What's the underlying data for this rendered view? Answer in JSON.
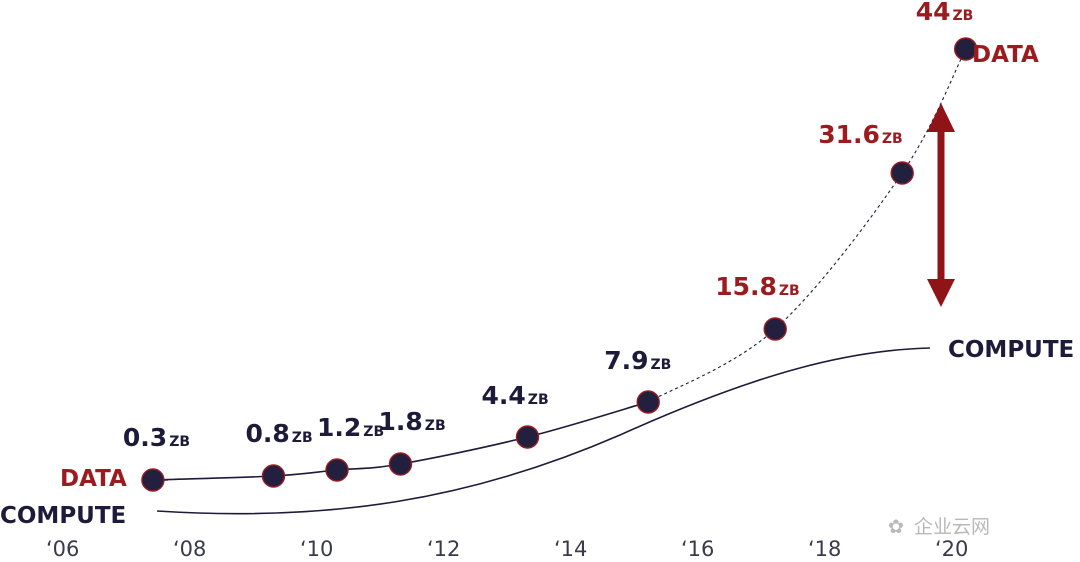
{
  "chart_data": {
    "type": "line",
    "x_ticks": [
      "‘06",
      "‘08",
      "‘10",
      "‘12",
      "‘14",
      "‘16",
      "‘18",
      "‘20"
    ],
    "x_tick_years": [
      2006,
      2008,
      2010,
      2012,
      2014,
      2016,
      2018,
      2020
    ],
    "xlim": [
      2006,
      2020
    ],
    "unit": "ZB",
    "series": [
      {
        "name": "DATA",
        "x": [
          2007.4,
          2009.3,
          2010.3,
          2011.3,
          2013.3,
          2015.2,
          2017.2,
          2019.2,
          2020.2
        ],
        "values": [
          0.3,
          0.8,
          1.2,
          1.8,
          4.4,
          7.9,
          15.8,
          31.6,
          44
        ],
        "labels": [
          "0.3",
          "0.8",
          "1.2",
          "1.8",
          "4.4",
          "7.9",
          "15.8",
          "31.6",
          "44"
        ]
      },
      {
        "name": "COMPUTE"
      }
    ],
    "colors": {
      "data_accent": "#9b1b1f",
      "dark": "#1e1b3a",
      "marker_fill": "#23203f",
      "marker_stroke": "#9b1b1f",
      "arrow": "#8e1418"
    },
    "annotation": "double-headed arrow showing gap between DATA and COMPUTE",
    "watermark": "企业云网"
  }
}
